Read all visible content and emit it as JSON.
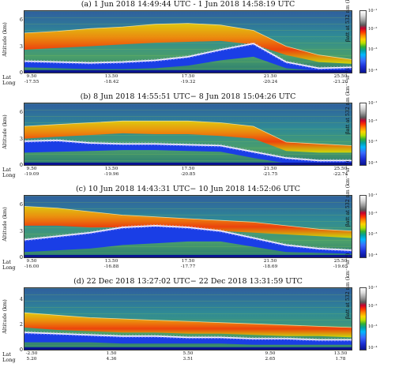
{
  "common": {
    "ylabel": "Altitude (km)",
    "lat_label": "Lat",
    "long_label": "Long",
    "colorbar_label": "βatt at 532 nm (km⁻¹ sr⁻¹)",
    "colorbar_ticks": [
      "10⁻¹",
      "10⁻²",
      "10⁻³",
      "10⁻⁴"
    ]
  },
  "chart_data": [
    {
      "type": "heatmap",
      "title": "(a) 1 Jun 2018 14:49:44 UTC - 1 Jun 2018 14:58:19 UTC",
      "ylabel": "Altitude (km)",
      "ylim": [
        0,
        7
      ],
      "yticks": [
        "0",
        "3",
        "6"
      ],
      "x_lat": [
        "9.50",
        "13.50",
        "17.50",
        "21.50",
        "25.50"
      ],
      "x_long": [
        "-17.55",
        "-18.42",
        "-19.32",
        "-20.24",
        "-21.20"
      ],
      "colorbar_label": "βatt at 532 nm (km⁻¹ sr⁻¹)",
      "colorbar_ticks": [
        "10⁻¹",
        "10⁻²",
        "10⁻³",
        "10⁻⁴"
      ],
      "layers": {
        "dust_top_km": [
          4.5,
          4.7,
          5.0,
          5.2,
          5.5,
          5.6,
          5.4,
          4.8,
          3.0,
          2.0,
          1.5
        ],
        "dust_bottom_km": [
          2.6,
          2.8,
          3.0,
          3.2,
          3.4,
          3.5,
          3.6,
          3.2,
          2.0,
          1.2,
          1.0
        ],
        "mbl_top_km": [
          1.3,
          1.2,
          1.1,
          1.2,
          1.4,
          1.8,
          2.6,
          3.3,
          1.2,
          0.5,
          0.6
        ],
        "mbl_bottom_km": [
          0.6,
          0.5,
          0.4,
          0.4,
          0.5,
          0.8,
          1.4,
          1.8,
          0.5,
          0.2,
          0.2
        ]
      }
    },
    {
      "type": "heatmap",
      "title": "(b) 8 Jun 2018 14:55:51 UTC− 8 Jun 2018 15:04:26 UTC",
      "ylabel": "Altitude (km)",
      "ylim": [
        0,
        7
      ],
      "yticks": [
        "0",
        "3",
        "6"
      ],
      "x_lat": [
        "9.50",
        "13.50",
        "17.50",
        "21.50",
        "25.50"
      ],
      "x_long": [
        "-19.09",
        "-19.96",
        "-20.85",
        "-21.75",
        "-22.74"
      ],
      "colorbar_label": "βatt at 532 nm (km⁻¹ sr⁻¹)",
      "colorbar_ticks": [
        "10⁻¹",
        "10⁻²",
        "10⁻³",
        "10⁻⁴"
      ],
      "layers": {
        "dust_top_km": [
          4.4,
          4.6,
          4.8,
          5.0,
          5.0,
          5.0,
          4.8,
          4.4,
          2.6,
          2.4,
          2.2
        ],
        "dust_bottom_km": [
          3.0,
          3.2,
          3.4,
          3.6,
          3.5,
          3.5,
          3.3,
          3.0,
          1.6,
          1.4,
          1.4
        ],
        "mbl_top_km": [
          2.7,
          2.8,
          2.5,
          2.4,
          2.4,
          2.3,
          2.2,
          1.5,
          0.8,
          0.5,
          0.5
        ],
        "mbl_bottom_km": [
          1.4,
          1.5,
          1.6,
          1.7,
          1.7,
          1.6,
          1.5,
          0.8,
          0.2,
          0.1,
          0.1
        ]
      }
    },
    {
      "type": "heatmap",
      "title": "(c) 10 Jun 2018 14:43:31 UTC− 10 Jun 2018 14:52:06 UTC",
      "ylabel": "Altitude (km)",
      "ylim": [
        0,
        7
      ],
      "yticks": [
        "0",
        "3",
        "6"
      ],
      "x_lat": [
        "9.50",
        "13.50",
        "17.50",
        "21.50",
        "25.50"
      ],
      "x_long": [
        "-16.00",
        "-16.88",
        "-17.77",
        "-18.69",
        "-19.65"
      ],
      "colorbar_label": "βatt at 532 nm (km⁻¹ sr⁻¹)",
      "colorbar_ticks": [
        "10⁻¹",
        "10⁻²",
        "10⁻³",
        "10⁻⁴"
      ],
      "layers": {
        "dust_top_km": [
          5.8,
          5.6,
          5.2,
          4.8,
          4.6,
          4.4,
          4.2,
          4.0,
          3.6,
          3.2,
          3.0
        ],
        "dust_bottom_km": [
          3.6,
          3.6,
          3.4,
          3.4,
          3.4,
          3.2,
          3.0,
          2.8,
          2.6,
          2.4,
          2.2
        ],
        "mbl_top_km": [
          2.0,
          2.4,
          2.8,
          3.4,
          3.6,
          3.4,
          3.0,
          2.2,
          1.4,
          1.0,
          0.8
        ],
        "mbl_bottom_km": [
          0.6,
          0.8,
          1.0,
          1.4,
          1.6,
          1.8,
          1.8,
          1.2,
          0.6,
          0.5,
          0.4
        ]
      }
    },
    {
      "type": "heatmap",
      "title": "(d) 22 Dec 2018 13:27:02 UTC− 22 Dec 2018 13:31:59 UTC",
      "ylabel": "Altitude (km)",
      "ylim": [
        0,
        5
      ],
      "yticks": [
        "0",
        "2",
        "4"
      ],
      "x_lat": [
        "-2.50",
        "1.50",
        "5.50",
        "9.50",
        "13.50"
      ],
      "x_long": [
        "5.20",
        "4.36",
        "3.51",
        "2.65",
        "1.78"
      ],
      "colorbar_label": "βatt at 532 nm (km⁻¹ sr⁻¹)",
      "colorbar_ticks": [
        "10⁻¹",
        "10⁻²",
        "10⁻³",
        "10⁻⁴"
      ],
      "layers": {
        "dust_top_km": [
          3.0,
          2.8,
          2.6,
          2.5,
          2.4,
          2.3,
          2.2,
          2.1,
          2.0,
          1.9,
          1.8
        ],
        "dust_bottom_km": [
          1.8,
          1.6,
          1.5,
          1.4,
          1.4,
          1.3,
          1.3,
          1.2,
          1.1,
          1.1,
          1.0
        ],
        "mbl_top_km": [
          1.4,
          1.3,
          1.2,
          1.1,
          1.1,
          1.0,
          1.0,
          0.9,
          0.9,
          0.8,
          0.8
        ],
        "mbl_bottom_km": [
          0.6,
          0.6,
          0.6,
          0.5,
          0.5,
          0.5,
          0.5,
          0.4,
          0.4,
          0.4,
          0.4
        ]
      }
    }
  ]
}
